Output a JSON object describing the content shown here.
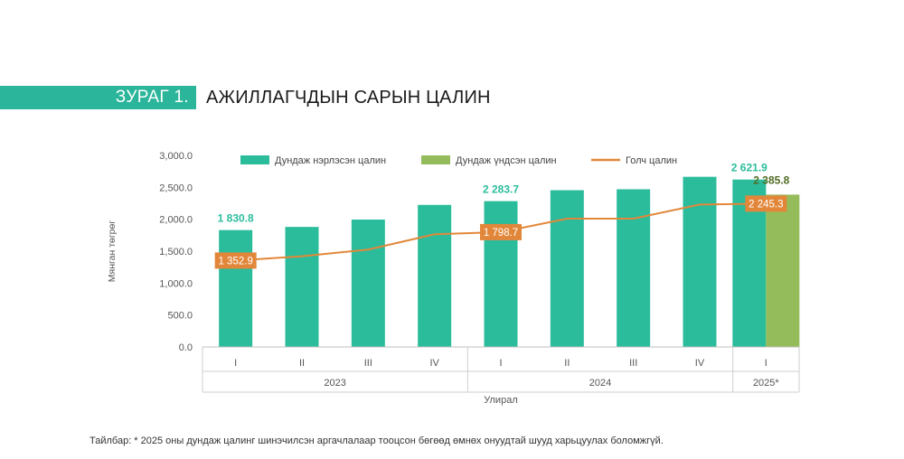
{
  "figure": {
    "label": "ЗУРАГ 1.",
    "title": "АЖИЛЛАГЧДЫН САРЫН ЦАЛИН"
  },
  "note": "Тайлбар: * 2025 оны дундаж цалинг шинэчилсэн аргачлалаар тооцсон бөгөөд өмнөх онуудтай шууд харьцуулах боломжгүй.",
  "colors": {
    "nominal": "#2bbc9c",
    "basic": "#94bc5a",
    "median": "#e2873a",
    "accent": "#2bb59a"
  },
  "chart_data": {
    "type": "bar",
    "ylabel": "Мянган төгрөг",
    "xlabel": "Улирал",
    "ylim": [
      0,
      3000
    ],
    "yticks": [
      "0.0",
      "500.0",
      "1,000.0",
      "1,500.0",
      "2,000.0",
      "2,500.0",
      "3,000.0"
    ],
    "categories": [
      "I",
      "II",
      "III",
      "IV",
      "I",
      "II",
      "III",
      "IV",
      "I"
    ],
    "year_groups": [
      {
        "label": "2023",
        "count": 4
      },
      {
        "label": "2024",
        "count": 4
      },
      {
        "label": "2025*",
        "count": 1
      }
    ],
    "legend": [
      "Дундаж нэрлэсэн цалин",
      "Дундаж үндсэн цалин",
      "Голч цалин"
    ],
    "series": [
      {
        "name": "Дундаж нэрлэсэн цалин",
        "type": "bar",
        "values": [
          1830.8,
          1880,
          1995,
          2225,
          2283.7,
          2455,
          2470,
          2665,
          2621.9
        ]
      },
      {
        "name": "Дундаж үндсэн цалин",
        "type": "bar",
        "values": [
          null,
          null,
          null,
          null,
          null,
          null,
          null,
          null,
          2385.8
        ]
      },
      {
        "name": "Голч цалин",
        "type": "line",
        "values": [
          1352.9,
          1420,
          1525,
          1765,
          1798.7,
          2010,
          2010,
          2230,
          2245.3
        ]
      }
    ],
    "data_labels": [
      {
        "series": 0,
        "index": 0,
        "text": "1 830.8"
      },
      {
        "series": 0,
        "index": 4,
        "text": "2 283.7"
      },
      {
        "series": 0,
        "index": 8,
        "text": "2 621.9"
      },
      {
        "series": 1,
        "index": 8,
        "text": "2 385.8"
      },
      {
        "series": 2,
        "index": 0,
        "text": "1 352.9"
      },
      {
        "series": 2,
        "index": 4,
        "text": "1 798.7"
      },
      {
        "series": 2,
        "index": 8,
        "text": "2 245.3"
      }
    ]
  }
}
